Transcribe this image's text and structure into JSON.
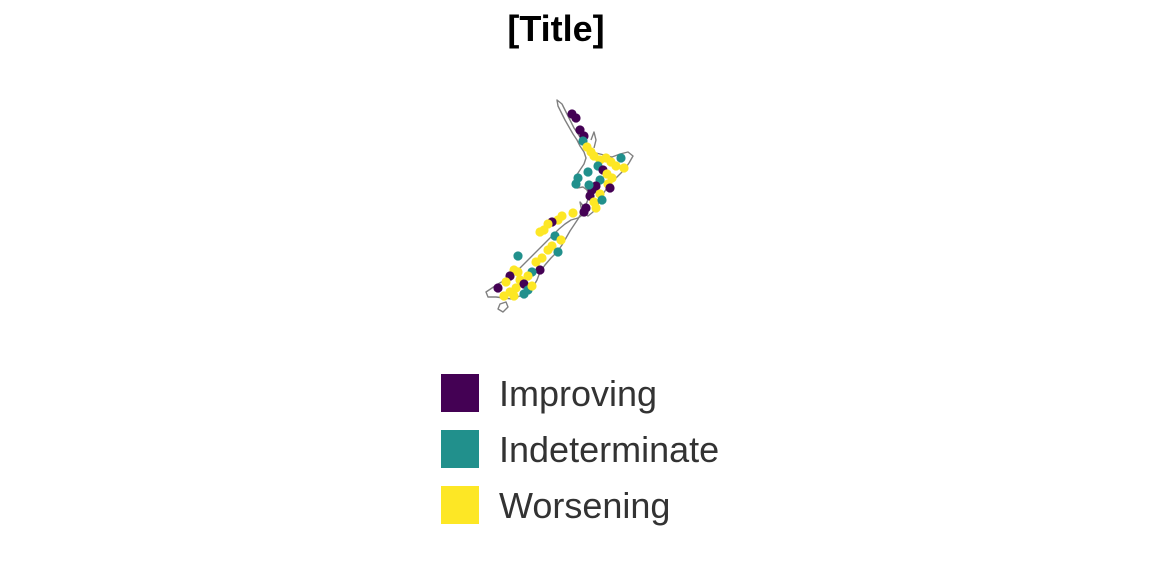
{
  "title": "[Title]",
  "legend": {
    "items": [
      {
        "label": "Improving",
        "color": "#440154"
      },
      {
        "label": "Indeterminate",
        "color": "#21908C"
      },
      {
        "label": "Worsening",
        "color": "#FDE725"
      }
    ]
  },
  "map": {
    "region": "New Zealand",
    "outline_color": "#808080",
    "point_categories": [
      "Improving",
      "Indeterminate",
      "Worsening"
    ]
  }
}
